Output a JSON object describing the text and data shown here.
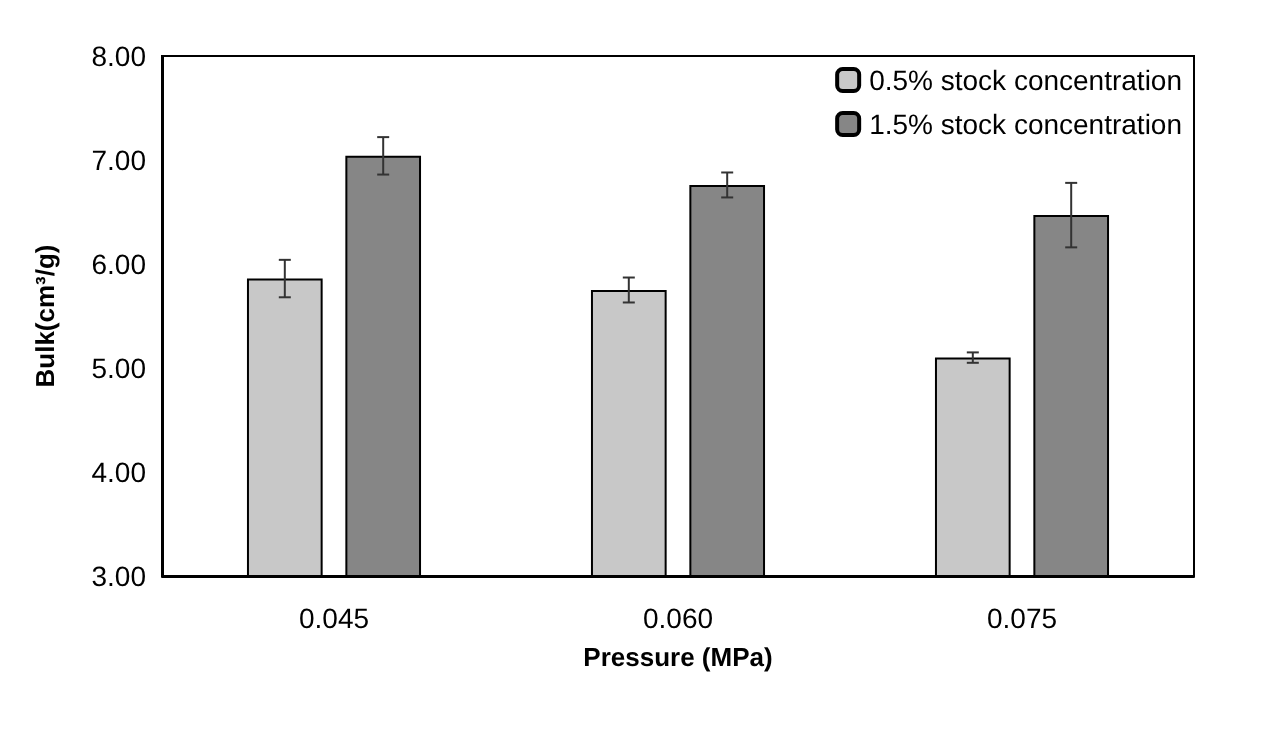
{
  "chart_data": {
    "type": "bar",
    "xlabel": "Pressure (MPa)",
    "ylabel": "Bulk(cm³/g)",
    "categories": [
      "0.045",
      "0.060",
      "0.075"
    ],
    "series": [
      {
        "name": "0.5% stock concentration",
        "color": "#c8c8c8",
        "values": [
          5.86,
          5.75,
          5.1
        ],
        "errors": [
          0.18,
          0.12,
          0.05
        ]
      },
      {
        "name": "1.5% stock concentration",
        "color": "#868686",
        "values": [
          7.04,
          6.76,
          6.47
        ],
        "errors": [
          0.18,
          0.12,
          0.31
        ]
      }
    ],
    "ylim": [
      3,
      8
    ],
    "yticks": [
      {
        "value": 3,
        "label": "3.00"
      },
      {
        "value": 4,
        "label": "4.00"
      },
      {
        "value": 5,
        "label": "5.00"
      },
      {
        "value": 6,
        "label": "6.00"
      },
      {
        "value": 7,
        "label": "7.00"
      },
      {
        "value": 8,
        "label": "8.00"
      }
    ],
    "grid": false,
    "legend": "top right"
  }
}
